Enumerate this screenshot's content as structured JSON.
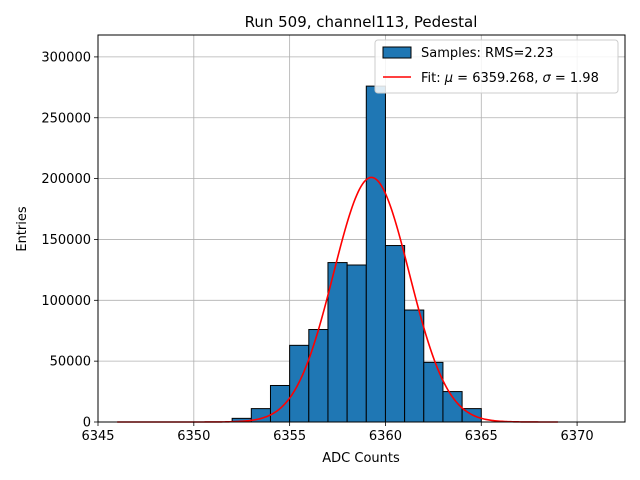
{
  "chart_data": {
    "type": "bar",
    "title": "Run 509, channel113, Pedestal",
    "xlabel": "ADC Counts",
    "ylabel": "Entries",
    "xlim": [
      6345,
      6372.5
    ],
    "ylim": [
      0,
      318000
    ],
    "xticks": [
      6345,
      6350,
      6355,
      6360,
      6365,
      6370
    ],
    "yticks": [
      0,
      50000,
      100000,
      150000,
      200000,
      250000,
      300000
    ],
    "grid": true,
    "legend_position": "top-right",
    "bin_width": 1,
    "histogram": {
      "name": "Samples: RMS=2.23",
      "color": "#1f77b4",
      "edge_color": "#000000",
      "bin_lefts": [
        6352,
        6353,
        6354,
        6355,
        6356,
        6357,
        6358,
        6359,
        6360,
        6361,
        6362,
        6363,
        6364
      ],
      "values": [
        3000,
        11000,
        30000,
        63000,
        76000,
        131000,
        129000,
        276000,
        145000,
        92000,
        49000,
        25000,
        11000
      ]
    },
    "fit": {
      "name_prefix": "Fit: ",
      "mu_symbol": "μ",
      "mu_text": " = 6359.268, ",
      "sigma_symbol": "σ",
      "sigma_text": " = 1.98",
      "color": "#ff0000",
      "mu": 6359.268,
      "sigma": 1.98,
      "amplitude": 201000,
      "x_range": [
        6346,
        6369
      ]
    }
  }
}
